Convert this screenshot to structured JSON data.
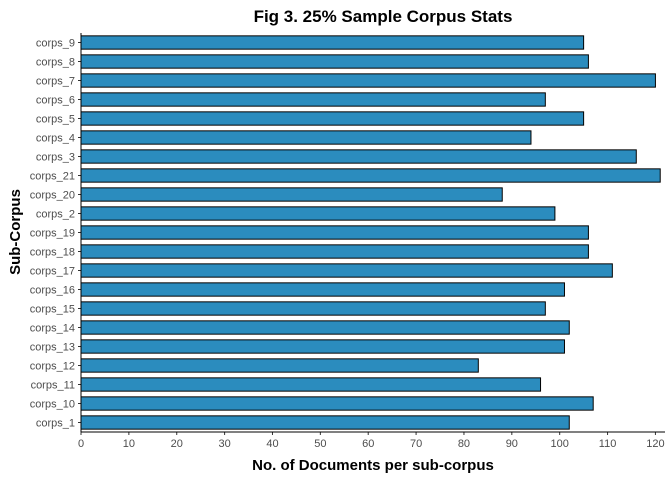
{
  "chart_data": {
    "type": "bar",
    "orientation": "horizontal",
    "title": "Fig 3. 25% Sample Corpus Stats",
    "xlabel": "No. of Documents per sub-corpus",
    "ylabel": "Sub-Corpus",
    "xlim": [
      0,
      122
    ],
    "xticks": [
      0,
      10,
      20,
      30,
      40,
      50,
      60,
      70,
      80,
      90,
      100,
      110,
      120
    ],
    "grid": false,
    "bar_color": "#2b8cbe",
    "categories": [
      "corps_9",
      "corps_8",
      "corps_7",
      "corps_6",
      "corps_5",
      "corps_4",
      "corps_3",
      "corps_21",
      "corps_20",
      "corps_2",
      "corps_19",
      "corps_18",
      "corps_17",
      "corps_16",
      "corps_15",
      "corps_14",
      "corps_13",
      "corps_12",
      "corps_11",
      "corps_10",
      "corps_1"
    ],
    "values": [
      105,
      106,
      120,
      97,
      105,
      94,
      116,
      121,
      88,
      99,
      106,
      106,
      111,
      101,
      97,
      102,
      101,
      83,
      96,
      107,
      102
    ]
  }
}
